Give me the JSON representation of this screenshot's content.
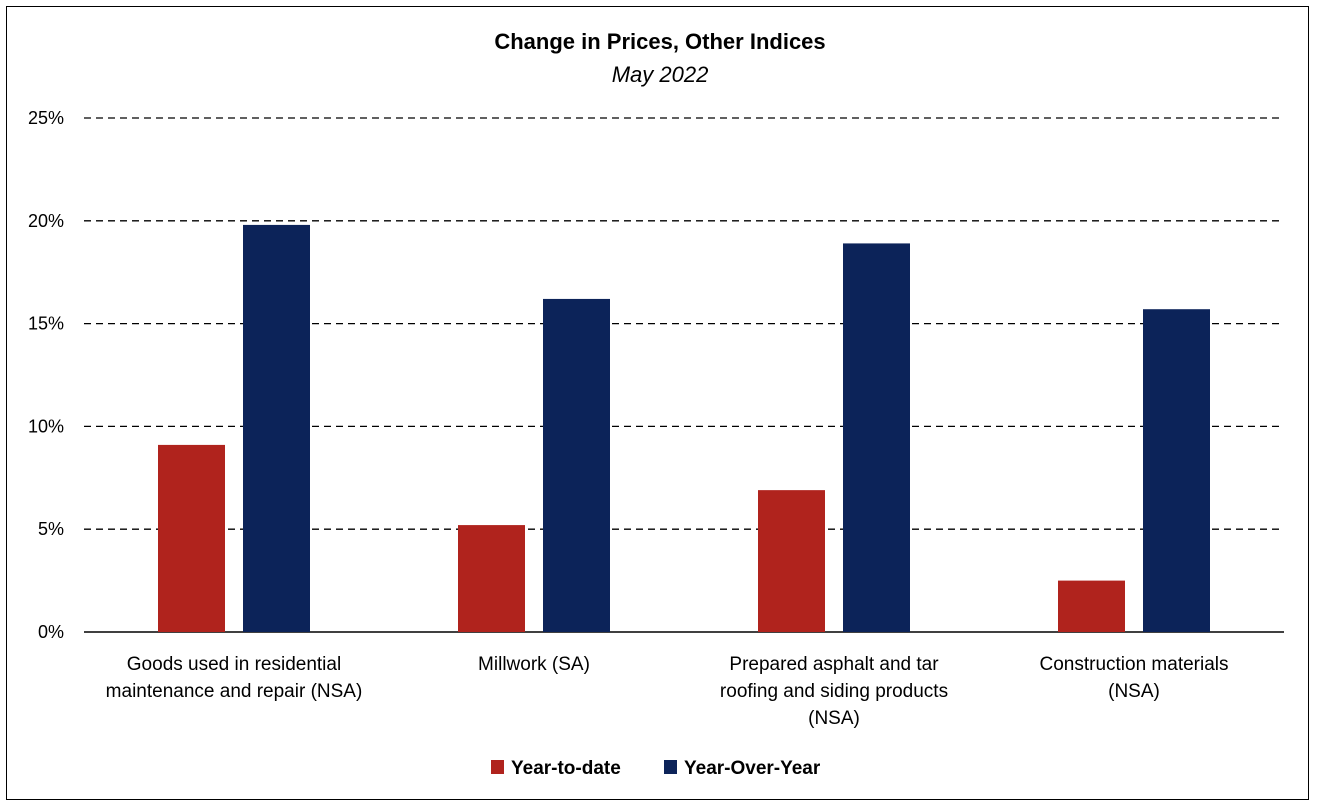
{
  "chart_data": {
    "type": "bar",
    "title": "Change in Prices, Other Indices",
    "subtitle": "May 2022",
    "categories": [
      [
        "Goods used in residential",
        "maintenance and repair (NSA)"
      ],
      [
        "Millwork (SA)"
      ],
      [
        "Prepared asphalt and tar",
        "roofing and siding products",
        "(NSA)"
      ],
      [
        "Construction materials",
        "(NSA)"
      ]
    ],
    "series": [
      {
        "name": "Year-to-date",
        "color": "#b0231d",
        "values": [
          9.1,
          5.2,
          6.9,
          2.5
        ]
      },
      {
        "name": "Year-Over-Year",
        "color": "#0c2359",
        "values": [
          19.8,
          16.2,
          18.9,
          15.7
        ]
      }
    ],
    "y_ticks": [
      "0%",
      "5%",
      "10%",
      "15%",
      "20%",
      "25%"
    ],
    "ylim": [
      0,
      25
    ],
    "grid": "dashed-horizontal",
    "legend_position": "bottom-center"
  }
}
